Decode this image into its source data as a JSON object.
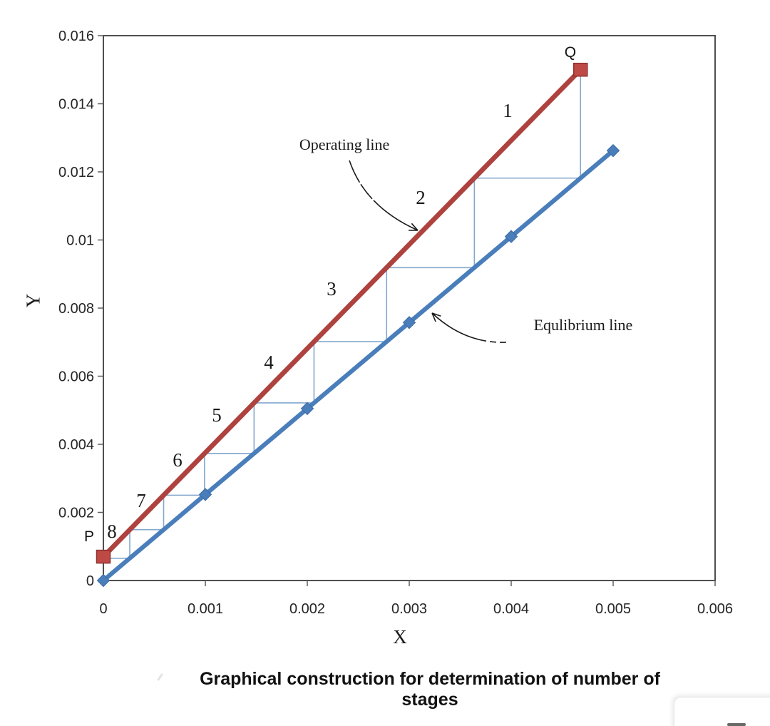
{
  "figure": {
    "title": "Graphical construction for determination of number of stages",
    "x_axis_title": "X",
    "y_axis_title": "Y"
  },
  "colors": {
    "operating_line": "#ae423e",
    "operating_marker_fill": "#bf4a45",
    "operating_marker_stroke": "#8f302d",
    "equilibrium_line": "#4a7ebb",
    "equilibrium_marker_stroke": "#3b6aa3",
    "staircase": "#84a7cd",
    "axis": "#4f4f4f",
    "tick": "#5f5f5f",
    "tick_text": "#262626",
    "annotation_text": "#1a1a1a",
    "arrow": "#1a1a1a"
  },
  "chart_data": {
    "type": "line",
    "title": "Graphical construction for determination of number of stages",
    "xlabel": "X",
    "ylabel": "Y",
    "xlim": [
      0,
      0.006
    ],
    "ylim": [
      0,
      0.016
    ],
    "grid": false,
    "legend": "none",
    "x_ticks": [
      {
        "value": 0,
        "label": "0"
      },
      {
        "value": 0.001,
        "label": "0.001"
      },
      {
        "value": 0.002,
        "label": "0.002"
      },
      {
        "value": 0.003,
        "label": "0.003"
      },
      {
        "value": 0.004,
        "label": "0.004"
      },
      {
        "value": 0.005,
        "label": "0.005"
      },
      {
        "value": 0.006,
        "label": "0.006"
      }
    ],
    "y_ticks": [
      {
        "value": 0,
        "label": "0"
      },
      {
        "value": 0.002,
        "label": "0.002"
      },
      {
        "value": 0.004,
        "label": "0.004"
      },
      {
        "value": 0.006,
        "label": "0.006"
      },
      {
        "value": 0.008,
        "label": "0.008"
      },
      {
        "value": 0.01,
        "label": "0.01"
      },
      {
        "value": 0.012,
        "label": "0.012"
      },
      {
        "value": 0.014,
        "label": "0.014"
      },
      {
        "value": 0.016,
        "label": "0.016"
      }
    ],
    "series": [
      {
        "name": "Operating line",
        "marker": "square",
        "points": [
          [
            0,
            0.0007
          ],
          [
            0.00468,
            0.015
          ]
        ],
        "endpoint_labels": [
          "P",
          "Q"
        ]
      },
      {
        "name": "Equlibrium line",
        "marker": "diamond",
        "points": [
          [
            0,
            0
          ],
          [
            0.001,
            0.002525
          ],
          [
            0.002,
            0.00505
          ],
          [
            0.003,
            0.007575
          ],
          [
            0.004,
            0.0101
          ],
          [
            0.005,
            0.012625
          ]
        ]
      }
    ],
    "staircase": {
      "points": [
        [
          0.00468,
          0.015
        ],
        [
          0.00468,
          0.011817
        ],
        [
          0.003639,
          0.011817
        ],
        [
          0.003639,
          0.009188
        ],
        [
          0.002778,
          0.009188
        ],
        [
          0.002778,
          0.007014
        ],
        [
          0.002066,
          0.007014
        ],
        [
          0.002066,
          0.005217
        ],
        [
          0.001478,
          0.005217
        ],
        [
          0.001478,
          0.003732
        ],
        [
          0.000992,
          0.003732
        ],
        [
          0.000992,
          0.002505
        ],
        [
          0.000591,
          0.002505
        ],
        [
          0.000591,
          0.001492
        ],
        [
          0.000259,
          0.001492
        ],
        [
          0.000259,
          0.000654
        ],
        [
          0,
          0.000654
        ]
      ]
    },
    "stage_labels": [
      {
        "text": "1",
        "x": 0.003965,
        "y": 0.0138
      },
      {
        "text": "2",
        "x": 0.003112,
        "y": 0.011246
      },
      {
        "text": "3",
        "x": 0.002238,
        "y": 0.008566
      },
      {
        "text": "4",
        "x": 0.001622,
        "y": 0.006409
      },
      {
        "text": "5",
        "x": 0.001112,
        "y": 0.004859
      },
      {
        "text": "6",
        "x": 0.000727,
        "y": 0.00354
      },
      {
        "text": "7",
        "x": 0.000371,
        "y": 0.002346
      },
      {
        "text": "8",
        "x": 8.39e-05,
        "y": 0.001445
      }
    ],
    "point_labels": [
      {
        "text": "Q",
        "x": 0.00458,
        "y": 0.015518
      },
      {
        "text": "P",
        "x": -0.00014,
        "y": 0.001298
      }
    ],
    "annotations": [
      {
        "text": "Operating line",
        "x": 0.002364,
        "y": 0.012817,
        "arrow": {
          "from": [
            0.002413,
            0.012335
          ],
          "ctrl": [
            0.002566,
            0.010974
          ],
          "to": [
            0.003084,
            0.010283
          ],
          "dash": "34 3 26 3 400"
        }
      },
      {
        "text": "Equlibrium line",
        "x": 0.004706,
        "y": 0.007518,
        "arrow": {
          "from": [
            0.003951,
            0.006995
          ],
          "ctrl": [
            0.003545,
            0.006953
          ],
          "to": [
            0.003224,
            0.007853
          ],
          "dash": "9 5 9 5 400"
        }
      }
    ]
  }
}
